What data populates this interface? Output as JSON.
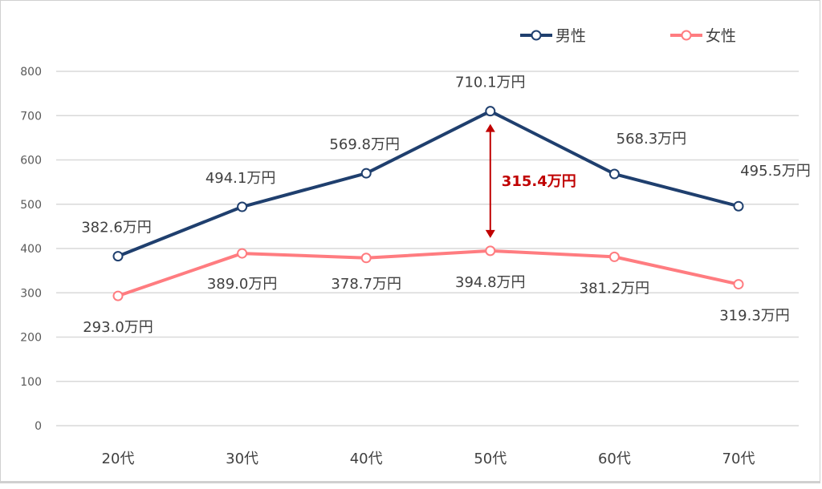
{
  "chart_data": {
    "type": "line",
    "title": "",
    "xlabel": "",
    "ylabel": "",
    "categories": [
      "20代",
      "30代",
      "40代",
      "50代",
      "60代",
      "70代"
    ],
    "ylim": [
      0,
      800
    ],
    "yticks": [
      0,
      100,
      200,
      300,
      400,
      500,
      600,
      700,
      800
    ],
    "grid": true,
    "legend": "top-right",
    "series": [
      {
        "name": "男性",
        "color": "#1f3f6e",
        "values": [
          382.6,
          494.1,
          569.8,
          710.1,
          568.3,
          495.5
        ],
        "labels": [
          "382.6万円",
          "494.1万円",
          "569.8万円",
          "710.1万円",
          "568.3万円",
          "495.5万円"
        ]
      },
      {
        "name": "女性",
        "color": "#ff7c80",
        "values": [
          293.0,
          389.0,
          378.7,
          394.8,
          381.2,
          319.3
        ],
        "labels": [
          "293.0万円",
          "389.0万円",
          "378.7万円",
          "394.8万円",
          "381.2万円",
          "319.3万円"
        ]
      }
    ],
    "annotation": {
      "text": "315.4万円",
      "category": "50代",
      "from": 394.8,
      "to": 710.1,
      "color": "#c00000"
    }
  }
}
